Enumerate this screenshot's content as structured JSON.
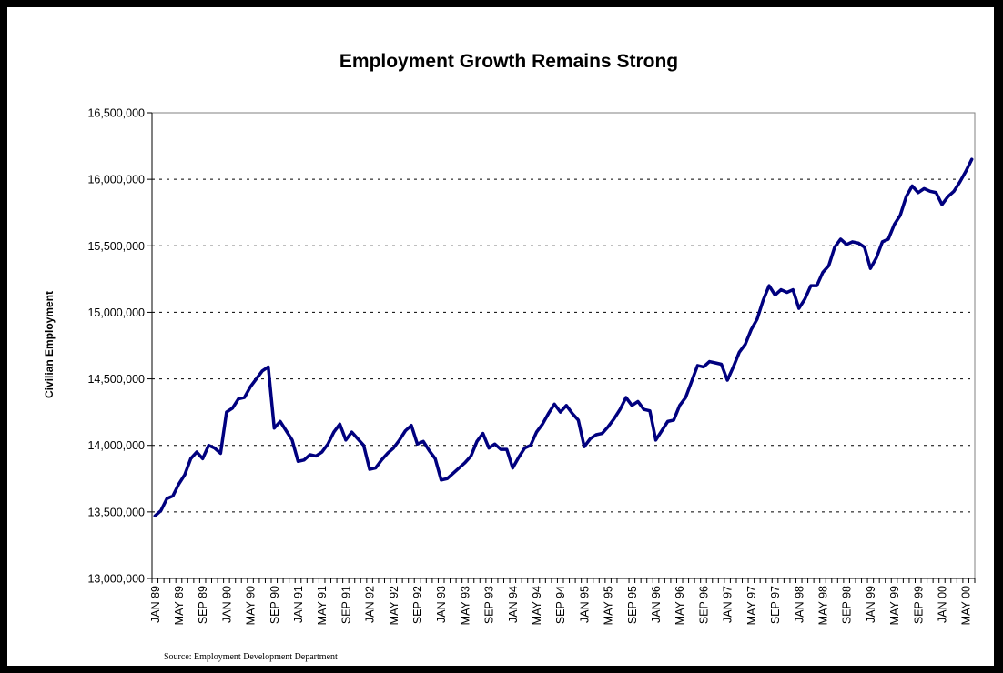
{
  "chart_data": {
    "type": "line",
    "title": "Employment Growth Remains Strong",
    "ylabel": "Civilian Employment",
    "xlabel": "",
    "source": "Source: Employment Development Department",
    "ylim": [
      13000000,
      16500000
    ],
    "y_ticks": [
      13000000,
      13500000,
      14000000,
      14500000,
      15000000,
      15500000,
      16000000,
      16500000
    ],
    "y_tick_labels": [
      "13,000,000",
      "13,500,000",
      "14,000,000",
      "14,500,000",
      "15,000,000",
      "15,500,000",
      "16,000,000",
      "16,500,000"
    ],
    "grid": "horizontal-dashed",
    "line_color": "#00007f",
    "x_tick_labels": [
      "JAN 89",
      "MAY 89",
      "SEP 89",
      "JAN 90",
      "MAY 90",
      "SEP 90",
      "JAN 91",
      "MAY 91",
      "SEP 91",
      "JAN 92",
      "MAY 92",
      "SEP 92",
      "JAN 93",
      "MAY 93",
      "SEP 93",
      "JAN 94",
      "MAY 94",
      "SEP 94",
      "JAN 95",
      "MAY 95",
      "SEP 95",
      "JAN 96",
      "MAY 96",
      "SEP 96",
      "JAN 97",
      "MAY 97",
      "SEP 97",
      "JAN 98",
      "MAY 98",
      "SEP 98",
      "JAN 99",
      "MAY 99",
      "SEP 99",
      "JAN 00",
      "MAY 00"
    ],
    "series": [
      {
        "values": [
          13470000,
          13510000,
          13600000,
          13620000,
          13710000,
          13780000,
          13900000,
          13950000,
          13900000,
          14000000,
          13980000,
          13940000,
          14250000,
          14280000,
          14350000,
          14360000,
          14440000,
          14500000,
          14560000,
          14590000,
          14130000,
          14180000,
          14110000,
          14040000,
          13880000,
          13890000,
          13930000,
          13920000,
          13950000,
          14010000,
          14100000,
          14160000,
          14040000,
          14100000,
          14050000,
          14000000,
          13820000,
          13830000,
          13890000,
          13940000,
          13980000,
          14040000,
          14110000,
          14150000,
          14010000,
          14030000,
          13960000,
          13900000,
          13740000,
          13750000,
          13790000,
          13830000,
          13870000,
          13920000,
          14030000,
          14090000,
          13980000,
          14010000,
          13970000,
          13970000,
          13830000,
          13910000,
          13980000,
          14000000,
          14100000,
          14160000,
          14240000,
          14310000,
          14250000,
          14300000,
          14240000,
          14190000,
          13990000,
          14050000,
          14080000,
          14090000,
          14140000,
          14200000,
          14270000,
          14360000,
          14300000,
          14330000,
          14270000,
          14260000,
          14040000,
          14110000,
          14180000,
          14190000,
          14300000,
          14360000,
          14480000,
          14600000,
          14590000,
          14630000,
          14620000,
          14610000,
          14490000,
          14590000,
          14700000,
          14760000,
          14870000,
          14950000,
          15090000,
          15200000,
          15130000,
          15170000,
          15150000,
          15170000,
          15030000,
          15100000,
          15200000,
          15200000,
          15300000,
          15350000,
          15490000,
          15550000,
          15510000,
          15530000,
          15520000,
          15490000,
          15330000,
          15410000,
          15530000,
          15550000,
          15660000,
          15730000,
          15870000,
          15950000,
          15900000,
          15930000,
          15910000,
          15900000,
          15810000,
          15870000,
          15910000,
          15980000,
          16060000,
          16150000
        ]
      }
    ]
  }
}
